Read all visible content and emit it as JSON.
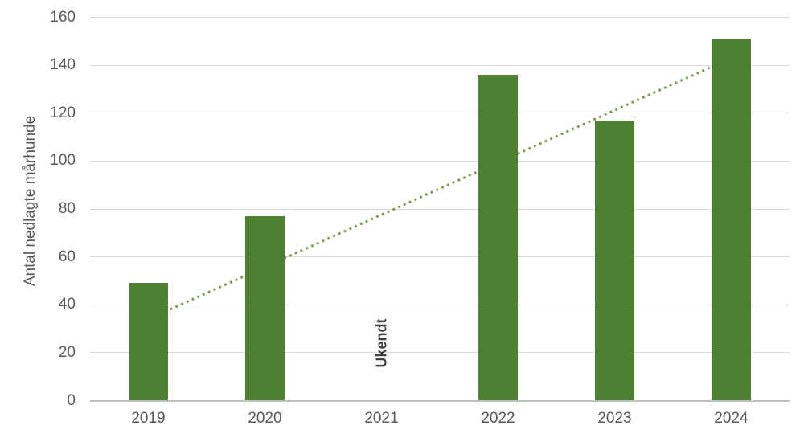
{
  "chart_data": {
    "type": "bar",
    "title": "",
    "xlabel": "",
    "ylabel": "Antal nedlagte mårhunde",
    "categories": [
      "2019",
      "2020",
      "2021",
      "2022",
      "2023",
      "2024"
    ],
    "values": [
      49,
      77,
      null,
      136,
      117,
      151
    ],
    "missing_value_label": "Ukendt",
    "missing_value_category": "2021",
    "yticks": [
      0,
      20,
      40,
      60,
      80,
      100,
      120,
      140,
      160
    ],
    "ylim": [
      0,
      160
    ],
    "grid": true,
    "legend": "none",
    "trendline": {
      "style": "dotted",
      "from": {
        "category": "2019",
        "value": 34
      },
      "to": {
        "category": "2024",
        "value": 143
      }
    },
    "colors": {
      "bar": "#4e8031",
      "trendline": "#7f9e53",
      "gridline": "#d9d9d9",
      "axis_line": "#bfbfbf",
      "tick_label": "#595959",
      "annotation": "#3f3f3f"
    }
  }
}
